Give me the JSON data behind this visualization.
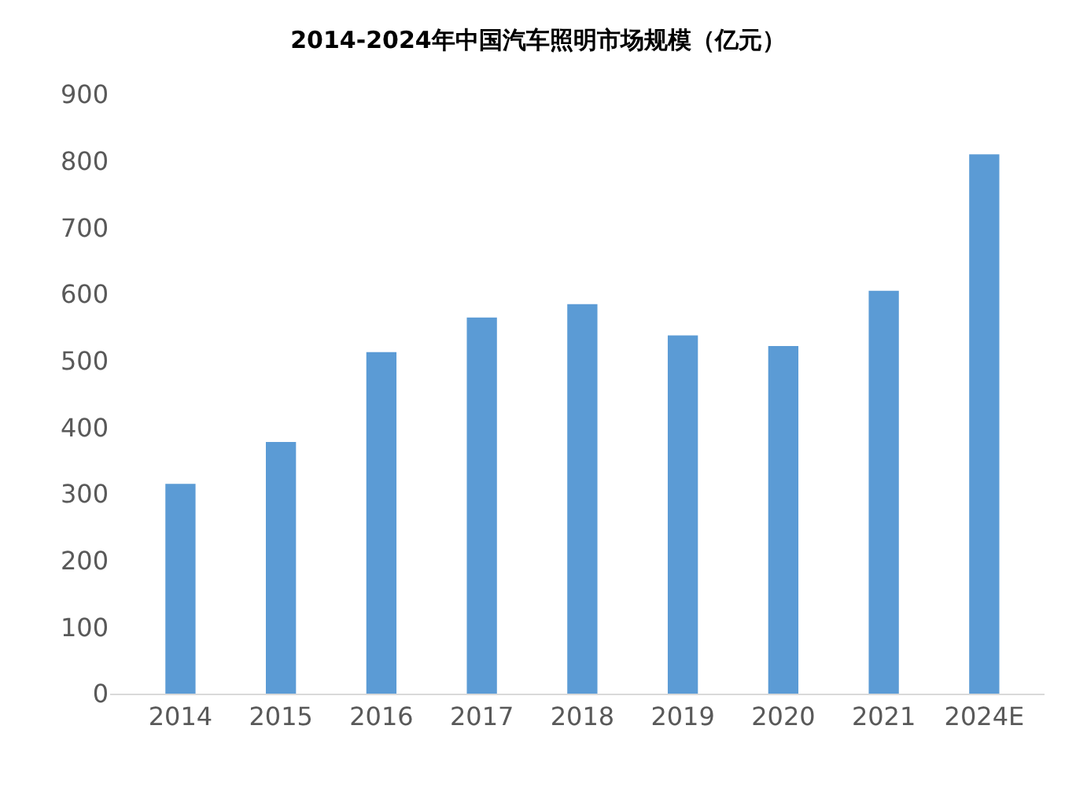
{
  "chart_data": {
    "type": "bar",
    "title": "2014-2024年中国汽车照明市场规模（亿元）",
    "categories": [
      "2014",
      "2015",
      "2016",
      "2017",
      "2018",
      "2019",
      "2020",
      "2021",
      "2024E"
    ],
    "values": [
      315,
      378,
      513,
      565,
      585,
      538,
      522,
      605,
      810
    ],
    "color": "#5b9bd5",
    "ylim": [
      0,
      900
    ],
    "yticks": [
      0,
      100,
      200,
      300,
      400,
      500,
      600,
      700,
      800,
      900
    ],
    "grid": false
  }
}
